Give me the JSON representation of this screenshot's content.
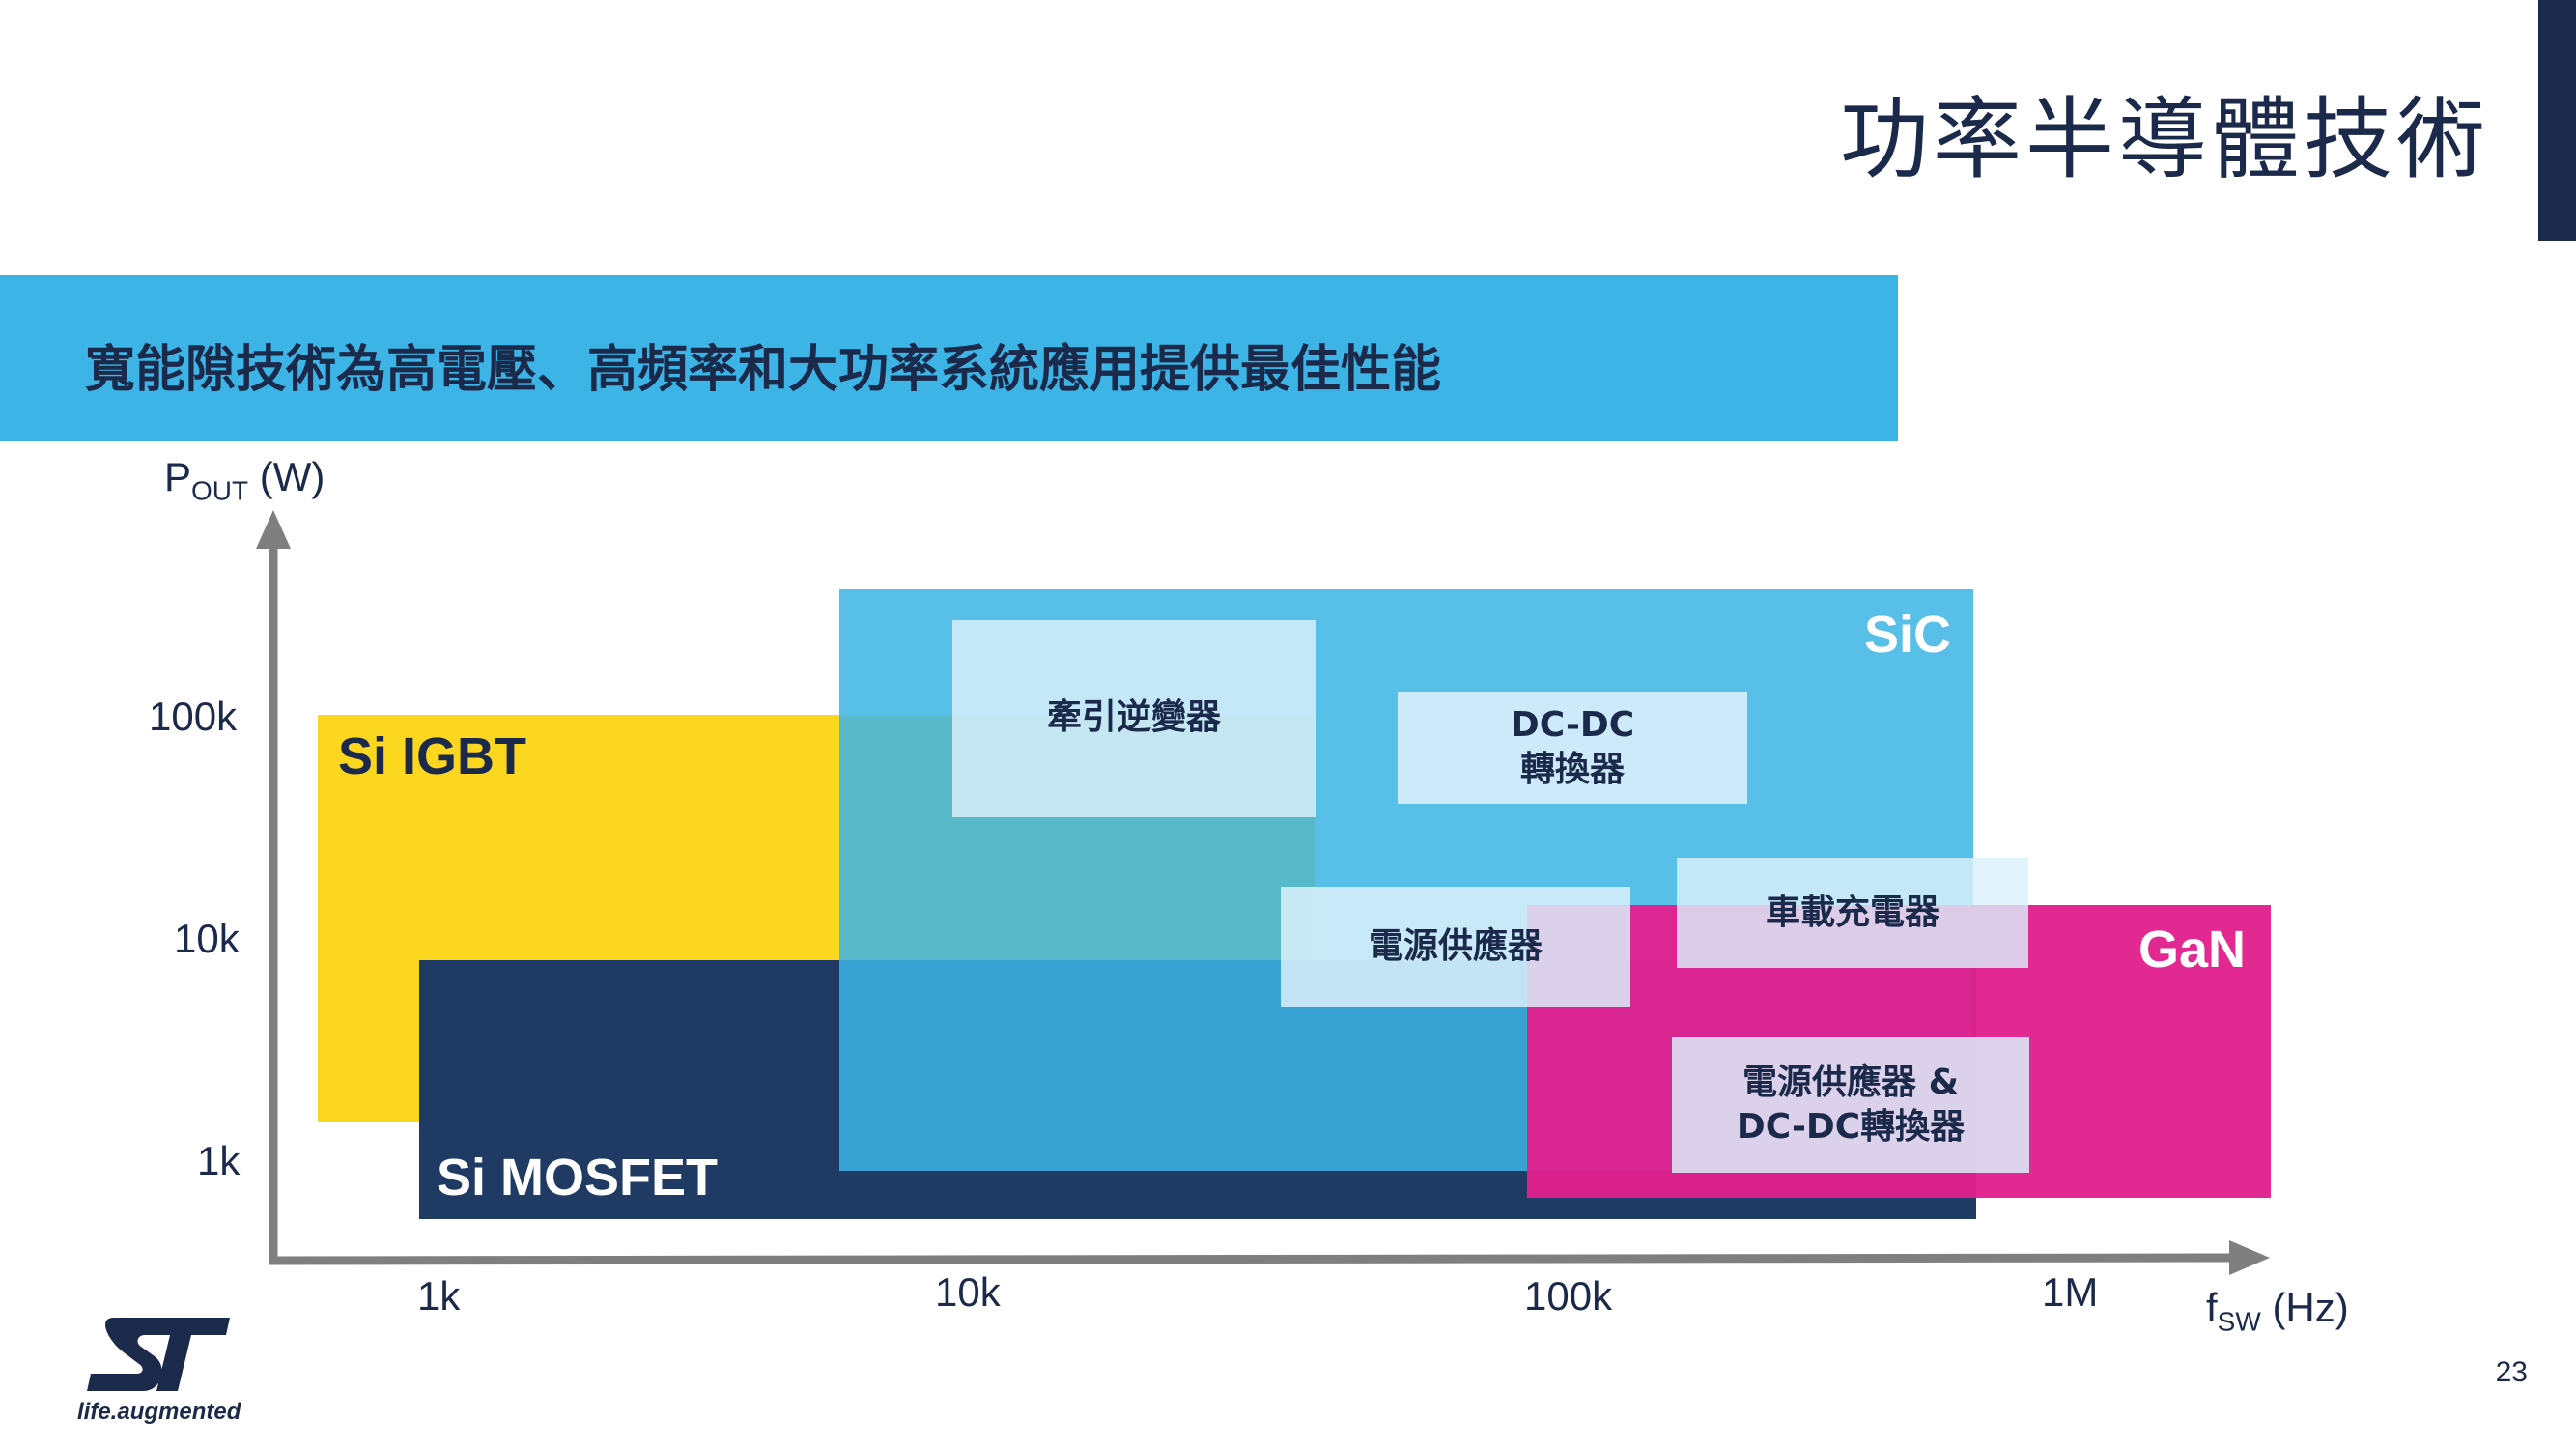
{
  "slide": {
    "title": "功率半導體技術",
    "banner": "寬能隙技術為高電壓、高頻率和大功率系統應用提供最佳性能",
    "page_number": "23"
  },
  "axes": {
    "y_label_main": "P",
    "y_label_sub": "OUT",
    "y_label_unit": " (W)",
    "x_label_main": "f",
    "x_label_sub": "SW",
    "x_label_unit": " (Hz)",
    "y_ticks": [
      "100k",
      "10k",
      "1k"
    ],
    "x_ticks": [
      "1k",
      "10k",
      "100k",
      "1M"
    ]
  },
  "regions": {
    "si_igbt": "Si IGBT",
    "si_mosfet": "Si MOSFET",
    "sic": "SiC",
    "gan": "GaN"
  },
  "applications": {
    "traction_inverter": "牽引逆變器",
    "dcdc_line1": "DC-DC",
    "dcdc_line2": "轉換器",
    "power_supply": "電源供應器",
    "onboard_charger": "車載充電器",
    "ps_dcdc_line1": "電源供應器 &",
    "ps_dcdc_line2": "DC-DC轉換器"
  },
  "logo": {
    "tagline": "life.augmented"
  },
  "colors": {
    "navy": "#1b2a4a",
    "banner_blue": "#3cb4e5",
    "igbt_yellow": "#fcd720",
    "mosfet_navy": "#1f3b63",
    "sic_blue": "#3cb4e5",
    "gan_magenta": "#e0208c"
  }
}
